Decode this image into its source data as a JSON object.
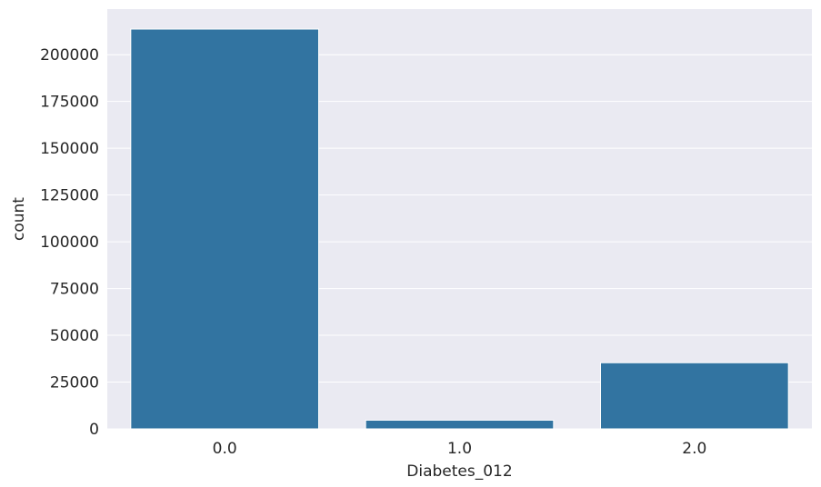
{
  "chart_data": {
    "type": "bar",
    "categories": [
      "0.0",
      "1.0",
      "2.0"
    ],
    "values": [
      213703,
      4631,
      35346
    ],
    "xlabel": "Diabetes_012",
    "ylabel": "count",
    "ylim": [
      0,
      224388
    ],
    "yticks": [
      0,
      25000,
      50000,
      75000,
      100000,
      125000,
      150000,
      175000,
      200000
    ],
    "grid": true,
    "colors": {
      "bar": "#3274a1",
      "background": "#eaeaf2",
      "grid": "#ffffff",
      "text": "#262626"
    }
  }
}
